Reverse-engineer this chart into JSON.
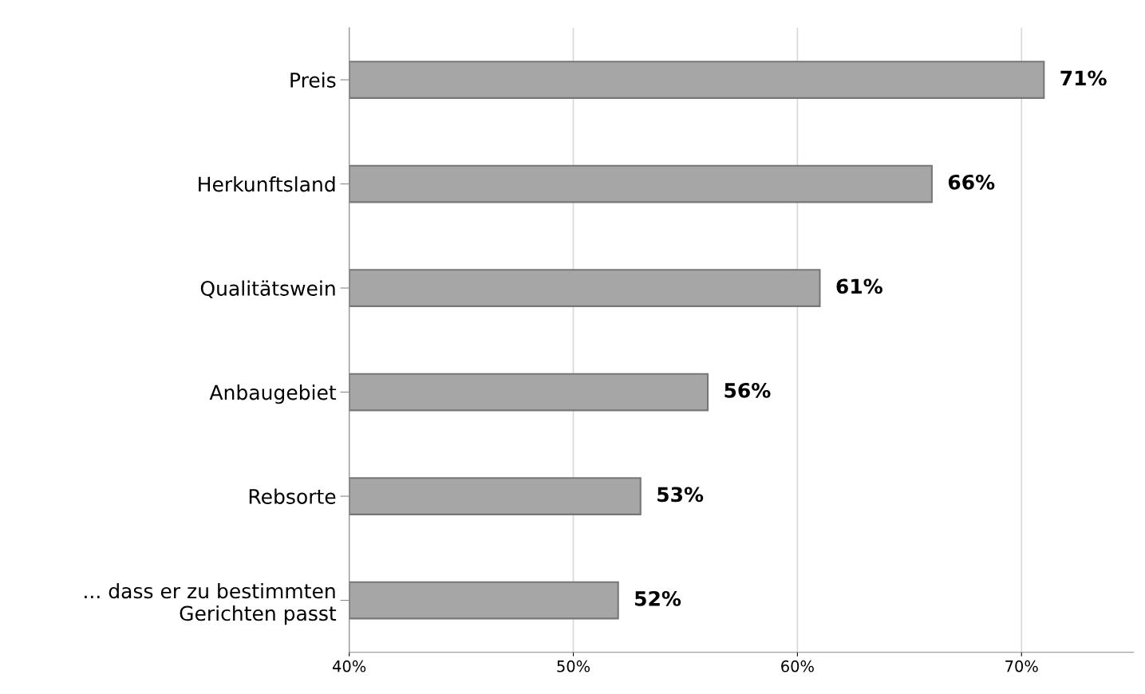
{
  "chart_data": {
    "type": "bar",
    "orientation": "horizontal",
    "categories": [
      "Preis",
      "Herkunftsland",
      "Qualitätswein",
      "Anbaugebiet",
      "Rebsorte",
      "... dass er zu bestimmten\nGerichten passt"
    ],
    "values": [
      71,
      66,
      61,
      56,
      53,
      52
    ],
    "value_labels": [
      "71%",
      "66%",
      "61%",
      "56%",
      "53%",
      "52%"
    ],
    "color": "#a6a6a6",
    "xlim": [
      40,
      75
    ],
    "xticks": [
      {
        "value": 40,
        "label": "40%"
      },
      {
        "value": 50,
        "label": "50%"
      },
      {
        "value": 60,
        "label": "60%"
      },
      {
        "value": 70,
        "label": "70%"
      }
    ],
    "grid": "x",
    "legend": false
  }
}
